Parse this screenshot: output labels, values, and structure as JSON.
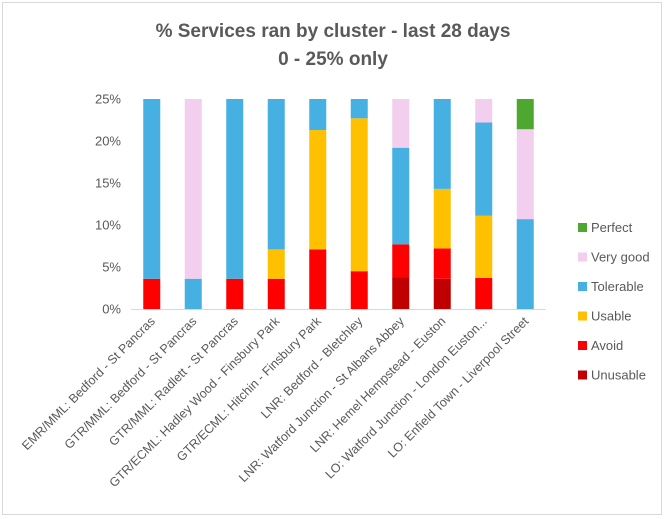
{
  "chart_data": {
    "type": "bar",
    "stacked": true,
    "title": "% Services ran by cluster - last 28 days",
    "subtitle": "0 - 25% only",
    "ylim": [
      0,
      25
    ],
    "y_ticks": [
      "0%",
      "5%",
      "10%",
      "15%",
      "20%",
      "25%"
    ],
    "y_tick_values": [
      0,
      5,
      10,
      15,
      20,
      25
    ],
    "grid": false,
    "legend_position": "right",
    "categories": [
      "EMR/MML: Bedford - St Pancras",
      "GTR/MML: Bedford - St Pancras",
      "GTR/MML: Radlett - St Pancras",
      "GTR/ECML: Hadley Wood - Finsbury Park",
      "GTR/ECML: Hitchin - Finsbury Park",
      "LNR: Bedford - Bletchley",
      "LNR: Watford Junction - St Albans Abbey",
      "LNR: Hemel Hempstead - Euston",
      "LO: Watford Junction - London Euston...",
      "LO: Enfield Town - Liverpool Street"
    ],
    "series": [
      {
        "name": "Unusable",
        "color": "#c00000",
        "values": [
          0,
          0,
          0,
          0,
          0,
          0,
          3.8,
          3.6,
          0,
          0
        ]
      },
      {
        "name": "Avoid",
        "color": "#ff0000",
        "values": [
          3.6,
          0,
          3.6,
          3.6,
          7.1,
          4.5,
          3.9,
          3.6,
          3.7,
          0
        ]
      },
      {
        "name": "Usable",
        "color": "#ffc000",
        "values": [
          0,
          0,
          0,
          3.5,
          14.2,
          18.2,
          0,
          7.1,
          7.4,
          0
        ]
      },
      {
        "name": "Tolerable",
        "color": "#45b0e1",
        "values": [
          21.4,
          3.6,
          21.4,
          17.9,
          3.7,
          2.3,
          11.5,
          10.7,
          11.1,
          10.7
        ]
      },
      {
        "name": "Very good",
        "color": "#f2ceef",
        "values": [
          0,
          21.4,
          0,
          0,
          0,
          0,
          5.8,
          0,
          2.8,
          10.7
        ]
      },
      {
        "name": "Perfect",
        "color": "#4ea72e",
        "values": [
          0,
          0,
          0,
          0,
          0,
          0,
          0,
          0,
          0,
          3.6
        ]
      }
    ],
    "legend_order": [
      "Perfect",
      "Very good",
      "Tolerable",
      "Usable",
      "Avoid",
      "Unusable"
    ]
  }
}
